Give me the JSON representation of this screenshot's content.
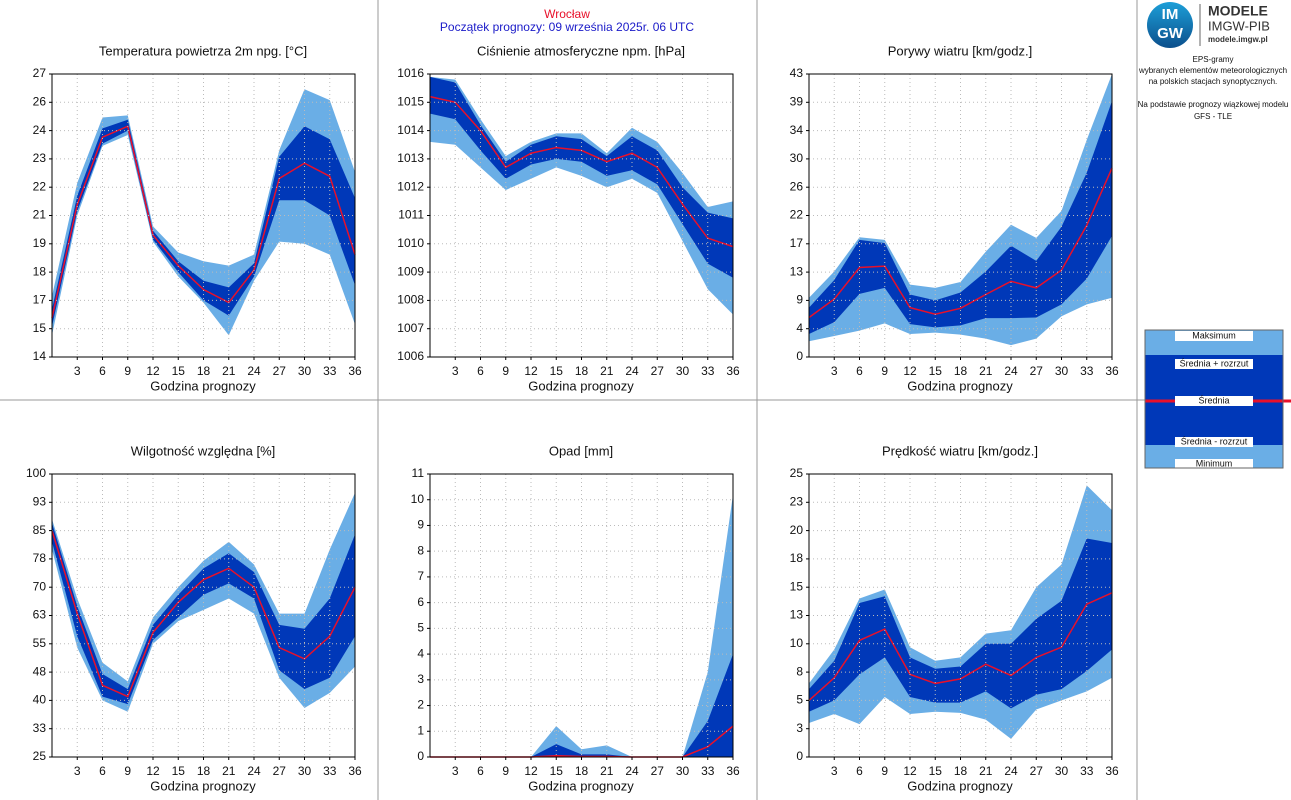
{
  "header": {
    "station": "Wrocław",
    "forecast_start": "Początek prognozy: 09 września 2025r. 06 UTC"
  },
  "logo": {
    "mark_top": "IM",
    "mark_bottom": "GW",
    "name": "MODELE",
    "org": "IMGW-PIB",
    "url": "modele.imgw.pl"
  },
  "description": [
    "EPS-gramy",
    "wybranych elementów meteorologicznych",
    "na polskich stacjach  synoptycznych.",
    "Na podstawie prognozy wiązkowej modelu",
    "GFS - TLE"
  ],
  "legend": [
    {
      "name": "Maksimum",
      "color": "#6aaee6"
    },
    {
      "name": "Średnia + rozrzut",
      "color": "#0038b8"
    },
    {
      "name": "Średnia",
      "color": "#e8102a"
    },
    {
      "name": "Średnia - rozrzut",
      "color": "#0038b8"
    },
    {
      "name": "Minimum",
      "color": "#6aaee6"
    }
  ],
  "chart_data": [
    {
      "type": "band",
      "title": "Temperatura powietrza 2m npg. [°C]",
      "xlabel": "Godzina prognozy",
      "x": [
        0,
        3,
        6,
        9,
        12,
        15,
        18,
        21,
        24,
        27,
        30,
        33,
        36
      ],
      "xlim": [
        0,
        36
      ],
      "xticks": [
        3,
        6,
        9,
        12,
        15,
        18,
        21,
        24,
        27,
        30,
        33,
        36
      ],
      "ylim": [
        14,
        27
      ],
      "yticks": [
        14,
        {
          "value": 15.3,
          "label": "15"
        },
        {
          "value": 16.6,
          "label": "17"
        },
        {
          "value": 17.9,
          "label": "18"
        },
        {
          "value": 19.2,
          "label": "19"
        },
        {
          "value": 20.5,
          "label": "21"
        },
        {
          "value": 21.8,
          "label": "22"
        },
        {
          "value": 23.1,
          "label": "23"
        },
        {
          "value": 24.4,
          "label": "24"
        },
        {
          "value": 25.7,
          "label": "26"
        },
        27
      ],
      "series": [
        {
          "values": [
            16.8,
            22.0,
            25.0,
            25.1,
            20.0,
            18.8,
            18.4,
            18.2,
            18.7,
            23.5,
            26.3,
            25.8,
            22.5
          ]
        },
        {
          "values": [
            16.2,
            21.4,
            24.5,
            24.9,
            19.8,
            18.4,
            17.5,
            17.2,
            18.3,
            23.2,
            24.6,
            24.0,
            21.3
          ]
        },
        {
          "values": [
            15.8,
            21.0,
            24.1,
            24.6,
            19.6,
            18.2,
            17.1,
            16.5,
            18.0,
            22.2,
            22.9,
            22.3,
            18.7
          ]
        },
        {
          "values": [
            15.4,
            20.7,
            23.8,
            24.4,
            19.4,
            17.9,
            16.6,
            15.9,
            17.7,
            21.2,
            21.2,
            20.5,
            17.3
          ]
        },
        {
          "values": [
            15.0,
            20.5,
            23.7,
            24.2,
            19.3,
            17.7,
            16.5,
            15.0,
            17.5,
            19.3,
            19.2,
            18.7,
            15.5
          ]
        }
      ]
    },
    {
      "type": "band",
      "title": "Ciśnienie atmosferyczne npm. [hPa]",
      "xlabel": "Godzina prognozy",
      "x": [
        0,
        3,
        6,
        9,
        12,
        15,
        18,
        21,
        24,
        27,
        30,
        33,
        36
      ],
      "xlim": [
        0,
        36
      ],
      "xticks": [
        3,
        6,
        9,
        12,
        15,
        18,
        21,
        24,
        27,
        30,
        33,
        36
      ],
      "ylim": [
        1006,
        1016
      ],
      "yticks": [
        1006,
        1007,
        1008,
        1009,
        1010,
        1011,
        1012,
        1013,
        1014,
        1015,
        1016
      ],
      "series": [
        {
          "values": [
            1015.9,
            1015.8,
            1014.4,
            1013.1,
            1013.6,
            1013.9,
            1013.9,
            1013.2,
            1014.1,
            1013.6,
            1012.5,
            1011.3,
            1011.5
          ]
        },
        {
          "values": [
            1015.9,
            1015.7,
            1014.2,
            1012.9,
            1013.5,
            1013.8,
            1013.7,
            1013.1,
            1013.8,
            1013.3,
            1012.0,
            1011.1,
            1010.9
          ]
        },
        {
          "values": [
            1015.2,
            1015.0,
            1014.0,
            1012.7,
            1013.2,
            1013.4,
            1013.3,
            1012.9,
            1013.2,
            1012.7,
            1011.4,
            1010.2,
            1009.9
          ]
        },
        {
          "values": [
            1014.6,
            1014.4,
            1013.3,
            1012.3,
            1012.8,
            1013.0,
            1012.9,
            1012.4,
            1012.6,
            1012.1,
            1010.7,
            1009.3,
            1008.8
          ]
        },
        {
          "values": [
            1013.6,
            1013.5,
            1012.7,
            1011.9,
            1012.3,
            1012.7,
            1012.4,
            1012.0,
            1012.3,
            1011.8,
            1010.1,
            1008.4,
            1007.5
          ]
        }
      ]
    },
    {
      "type": "band",
      "title": "Porywy wiatru [km/godz.]",
      "xlabel": "Godzina prognozy",
      "x": [
        0,
        3,
        6,
        9,
        12,
        15,
        18,
        21,
        24,
        27,
        30,
        33,
        36
      ],
      "xlim": [
        0,
        36
      ],
      "xticks": [
        3,
        6,
        9,
        12,
        15,
        18,
        21,
        24,
        27,
        30,
        33,
        36
      ],
      "ylim": [
        0,
        43
      ],
      "yticks": [
        0,
        {
          "value": 4.3,
          "label": "4"
        },
        {
          "value": 8.6,
          "label": "9"
        },
        {
          "value": 12.9,
          "label": "13"
        },
        {
          "value": 17.2,
          "label": "17"
        },
        {
          "value": 21.5,
          "label": "22"
        },
        {
          "value": 25.8,
          "label": "26"
        },
        {
          "value": 30.1,
          "label": "30"
        },
        {
          "value": 34.4,
          "label": "34"
        },
        {
          "value": 38.7,
          "label": "39"
        },
        43
      ],
      "series": [
        {
          "values": [
            9.0,
            13.0,
            18.2,
            17.8,
            11.0,
            10.5,
            11.4,
            16.0,
            20.1,
            18.1,
            22.2,
            33.0,
            43.0
          ]
        },
        {
          "values": [
            7.5,
            11.7,
            17.8,
            17.3,
            9.5,
            8.6,
            9.8,
            13.0,
            16.9,
            14.6,
            19.8,
            28.0,
            38.9
          ]
        },
        {
          "values": [
            6.0,
            8.8,
            13.6,
            13.8,
            7.5,
            6.5,
            7.4,
            9.5,
            11.5,
            10.5,
            13.2,
            20.0,
            28.7
          ]
        },
        {
          "values": [
            3.5,
            5.3,
            9.6,
            10.5,
            5.0,
            4.5,
            4.8,
            5.9,
            5.9,
            6.0,
            8.0,
            11.9,
            18.4
          ]
        },
        {
          "values": [
            2.4,
            3.2,
            4.0,
            5.1,
            3.5,
            3.7,
            3.4,
            2.8,
            1.8,
            2.8,
            6.2,
            8.0,
            9.0
          ]
        }
      ]
    },
    {
      "type": "band",
      "title": "Wilgotność względna [%]",
      "xlabel": "Godzina prognozy",
      "x": [
        0,
        3,
        6,
        9,
        12,
        15,
        18,
        21,
        24,
        27,
        30,
        33,
        36
      ],
      "xlim": [
        0,
        36
      ],
      "xticks": [
        3,
        6,
        9,
        12,
        15,
        18,
        21,
        24,
        27,
        30,
        33,
        36
      ],
      "ylim": [
        25,
        100
      ],
      "yticks": [
        25,
        {
          "value": 32.5,
          "label": "33"
        },
        40,
        {
          "value": 47.5,
          "label": "48"
        },
        55,
        {
          "value": 62.5,
          "label": "63"
        },
        70,
        {
          "value": 77.5,
          "label": "78"
        },
        85,
        {
          "value": 92.5,
          "label": "93"
        },
        100
      ],
      "series": [
        {
          "values": [
            88,
            67,
            50,
            45,
            62,
            70,
            77,
            82,
            76,
            63,
            63,
            80,
            95
          ]
        },
        {
          "values": [
            87,
            65,
            47,
            43,
            60,
            68,
            75,
            79,
            74,
            60,
            59,
            67,
            84
          ]
        },
        {
          "values": [
            85,
            63,
            44,
            41,
            58,
            66,
            72,
            75,
            70,
            54,
            51,
            57,
            70
          ]
        },
        {
          "values": [
            82,
            57,
            41,
            39,
            56,
            62,
            68,
            71,
            67,
            48,
            43,
            46,
            57
          ]
        },
        {
          "values": [
            80,
            54,
            40,
            37,
            55,
            61,
            64,
            67,
            63,
            46,
            38,
            42,
            49
          ]
        }
      ]
    },
    {
      "type": "band",
      "title": "Opad [mm]",
      "xlabel": "Godzina prognozy",
      "x": [
        0,
        3,
        6,
        9,
        12,
        15,
        18,
        21,
        24,
        27,
        30,
        33,
        36
      ],
      "xlim": [
        0,
        36
      ],
      "xticks": [
        3,
        6,
        9,
        12,
        15,
        18,
        21,
        24,
        27,
        30,
        33,
        36
      ],
      "ylim": [
        0,
        11
      ],
      "yticks": [
        0,
        1,
        2,
        3,
        4,
        5,
        6,
        7,
        8,
        9,
        10,
        11
      ],
      "series": [
        {
          "values": [
            0,
            0,
            0,
            0,
            0,
            1.2,
            0.3,
            0.45,
            0,
            0,
            0,
            3.3,
            10.2
          ]
        },
        {
          "values": [
            0,
            0,
            0,
            0,
            0,
            0.5,
            0.1,
            0.1,
            0,
            0,
            0,
            1.4,
            4.0
          ]
        },
        {
          "values": [
            0,
            0,
            0,
            0,
            0,
            0.05,
            0.02,
            0.02,
            0,
            0,
            0,
            0.4,
            1.2
          ]
        },
        {
          "values": [
            0,
            0,
            0,
            0,
            0,
            0,
            0,
            0,
            0,
            0,
            0,
            0,
            0
          ]
        },
        {
          "values": [
            0,
            0,
            0,
            0,
            0,
            0,
            0,
            0,
            0,
            0,
            0,
            0,
            0
          ]
        }
      ]
    },
    {
      "type": "band",
      "title": "Prędkość wiatru [km/godz.]",
      "xlabel": "Godzina prognozy",
      "x": [
        0,
        3,
        6,
        9,
        12,
        15,
        18,
        21,
        24,
        27,
        30,
        33,
        36
      ],
      "xlim": [
        0,
        36
      ],
      "xticks": [
        3,
        6,
        9,
        12,
        15,
        18,
        21,
        24,
        27,
        30,
        33,
        36
      ],
      "ylim": [
        0,
        25
      ],
      "yticks": [
        0,
        {
          "value": 2.5,
          "label": "3"
        },
        5,
        {
          "value": 7.5,
          "label": "8"
        },
        10,
        {
          "value": 12.5,
          "label": "13"
        },
        15,
        {
          "value": 17.5,
          "label": "18"
        },
        20,
        {
          "value": 22.5,
          "label": "23"
        },
        25
      ],
      "series": [
        {
          "values": [
            6.5,
            9.5,
            14.0,
            14.8,
            9.7,
            8.5,
            8.8,
            10.9,
            11.2,
            15.0,
            17.0,
            24.0,
            21.8
          ]
        },
        {
          "values": [
            6.0,
            8.5,
            13.6,
            14.2,
            8.8,
            7.8,
            8.0,
            10.0,
            10.0,
            12.2,
            13.8,
            19.3,
            18.9
          ]
        },
        {
          "values": [
            5.0,
            7.0,
            10.3,
            11.3,
            7.3,
            6.5,
            6.9,
            8.2,
            7.2,
            8.8,
            9.7,
            13.5,
            14.5
          ]
        },
        {
          "values": [
            4.0,
            5.0,
            7.3,
            8.8,
            5.3,
            4.8,
            4.8,
            5.8,
            4.3,
            5.5,
            6.0,
            7.6,
            9.5
          ]
        },
        {
          "values": [
            3.0,
            3.8,
            2.9,
            5.3,
            3.8,
            4.0,
            3.9,
            3.3,
            1.6,
            4.2,
            5.0,
            5.8,
            7.0
          ]
        }
      ]
    }
  ]
}
